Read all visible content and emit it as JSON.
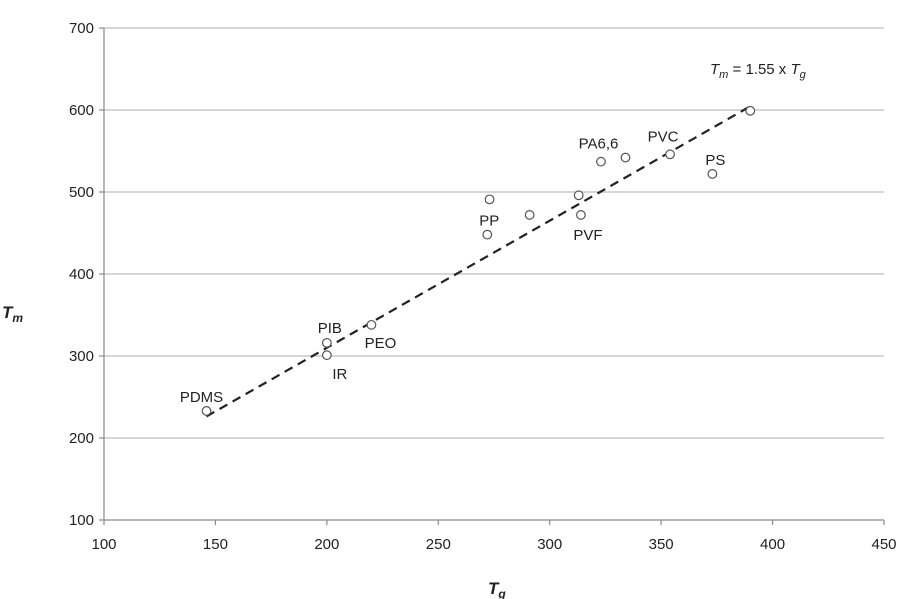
{
  "chart_data": {
    "type": "scatter",
    "title": "",
    "xlabel": "T",
    "xlabel_sub": "g",
    "ylabel": "T",
    "ylabel_sub": "m",
    "xlim": [
      100,
      450
    ],
    "ylim": [
      100,
      700
    ],
    "xticks": [
      100,
      150,
      200,
      250,
      300,
      350,
      400,
      450
    ],
    "yticks": [
      100,
      200,
      300,
      400,
      500,
      600,
      700
    ],
    "grid": "horizontal",
    "points": [
      {
        "x": 146,
        "y": 233,
        "label": "PDMS"
      },
      {
        "x": 200,
        "y": 316,
        "label": "PIB"
      },
      {
        "x": 200,
        "y": 301,
        "label": "IR"
      },
      {
        "x": 220,
        "y": 338,
        "label": "PEO"
      },
      {
        "x": 272,
        "y": 448,
        "label": "PP"
      },
      {
        "x": 273,
        "y": 491,
        "label": ""
      },
      {
        "x": 291,
        "y": 472,
        "label": ""
      },
      {
        "x": 313,
        "y": 496,
        "label": ""
      },
      {
        "x": 314,
        "y": 472,
        "label": "PVF"
      },
      {
        "x": 323,
        "y": 537,
        "label": ""
      },
      {
        "x": 334,
        "y": 542,
        "label": "PA6,6"
      },
      {
        "x": 354,
        "y": 546,
        "label": "PVC"
      },
      {
        "x": 373,
        "y": 522,
        "label": "PS"
      },
      {
        "x": 390,
        "y": 599,
        "label": ""
      }
    ],
    "fit_line": {
      "style": "dashed",
      "x": [
        146,
        390
      ],
      "slope": 1.55
    },
    "annotation": {
      "parts": [
        {
          "text": "T",
          "italic": true,
          "sub": false
        },
        {
          "text": "m",
          "italic": true,
          "sub": true
        },
        {
          "text": " = 1.55 x ",
          "italic": false,
          "sub": false
        },
        {
          "text": "T",
          "italic": true,
          "sub": false
        },
        {
          "text": "g",
          "italic": true,
          "sub": true
        }
      ]
    }
  }
}
